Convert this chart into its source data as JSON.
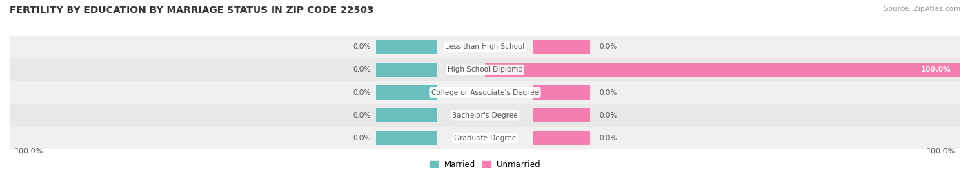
{
  "title": "FERTILITY BY EDUCATION BY MARRIAGE STATUS IN ZIP CODE 22503",
  "source": "Source: ZipAtlas.com",
  "categories": [
    "Less than High School",
    "High School Diploma",
    "College or Associate's Degree",
    "Bachelor's Degree",
    "Graduate Degree"
  ],
  "married_vals": [
    0.0,
    0.0,
    0.0,
    0.0,
    0.0
  ],
  "unmarried_vals": [
    0.0,
    100.0,
    0.0,
    0.0,
    0.0
  ],
  "married_color": "#6CBFBF",
  "unmarried_color": "#F47EB0",
  "row_bg_even": "#F0F0F0",
  "row_bg_odd": "#E8E8E8",
  "label_color": "#555555",
  "title_color": "#333333",
  "source_color": "#999999",
  "x_min": -100,
  "x_max": 100,
  "figsize": [
    14.06,
    2.69
  ],
  "dpi": 100,
  "legend_married": "Married",
  "legend_unmarried": "Unmarried",
  "bottom_left_label": "100.0%",
  "bottom_right_label": "100.0%",
  "title_fontsize": 10,
  "label_fontsize": 7.5,
  "source_fontsize": 7.5
}
